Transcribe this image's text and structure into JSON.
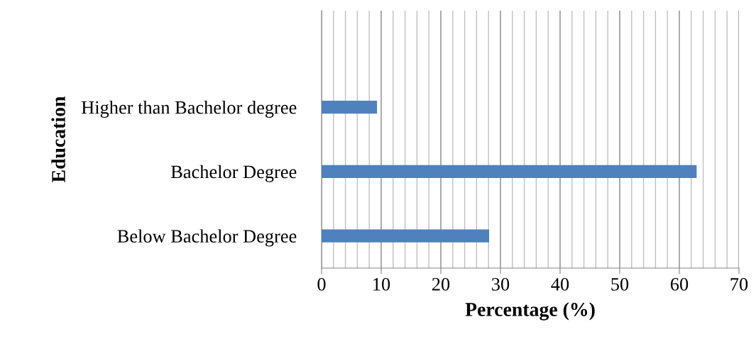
{
  "chart_data": {
    "type": "bar",
    "orientation": "horizontal",
    "xlabel": "Percentage (%)",
    "ylabel": "Education",
    "categories": [
      null,
      "Higher than Bachelor degree",
      "Bachelor Degree",
      "Below Bachelor Degree"
    ],
    "values": [
      null,
      9.3,
      62.9,
      28.1
    ],
    "color": "#4f81bd",
    "xlim": [
      0,
      70
    ],
    "xticks": [
      0,
      {
        "value": 2,
        "label": null
      },
      {
        "value": 4,
        "label": null
      },
      {
        "value": 6,
        "label": null
      },
      {
        "value": 8,
        "label": null
      },
      10,
      {
        "value": 12,
        "label": null
      },
      {
        "value": 14,
        "label": null
      },
      {
        "value": 16,
        "label": null
      },
      {
        "value": 18,
        "label": null
      },
      20,
      {
        "value": 22,
        "label": null
      },
      {
        "value": 24,
        "label": null
      },
      {
        "value": 26,
        "label": null
      },
      {
        "value": 28,
        "label": null
      },
      30,
      {
        "value": 32,
        "label": null
      },
      {
        "value": 34,
        "label": null
      },
      {
        "value": 36,
        "label": null
      },
      {
        "value": 38,
        "label": null
      },
      40,
      {
        "value": 42,
        "label": null
      },
      {
        "value": 44,
        "label": null
      },
      {
        "value": 46,
        "label": null
      },
      {
        "value": 48,
        "label": null
      },
      50,
      {
        "value": 52,
        "label": null
      },
      {
        "value": 54,
        "label": null
      },
      {
        "value": 56,
        "label": null
      },
      {
        "value": 58,
        "label": null
      },
      60,
      {
        "value": 62,
        "label": null
      },
      {
        "value": 64,
        "label": null
      },
      {
        "value": 66,
        "label": null
      },
      {
        "value": 68,
        "label": null
      },
      70
    ],
    "grid": "x"
  }
}
